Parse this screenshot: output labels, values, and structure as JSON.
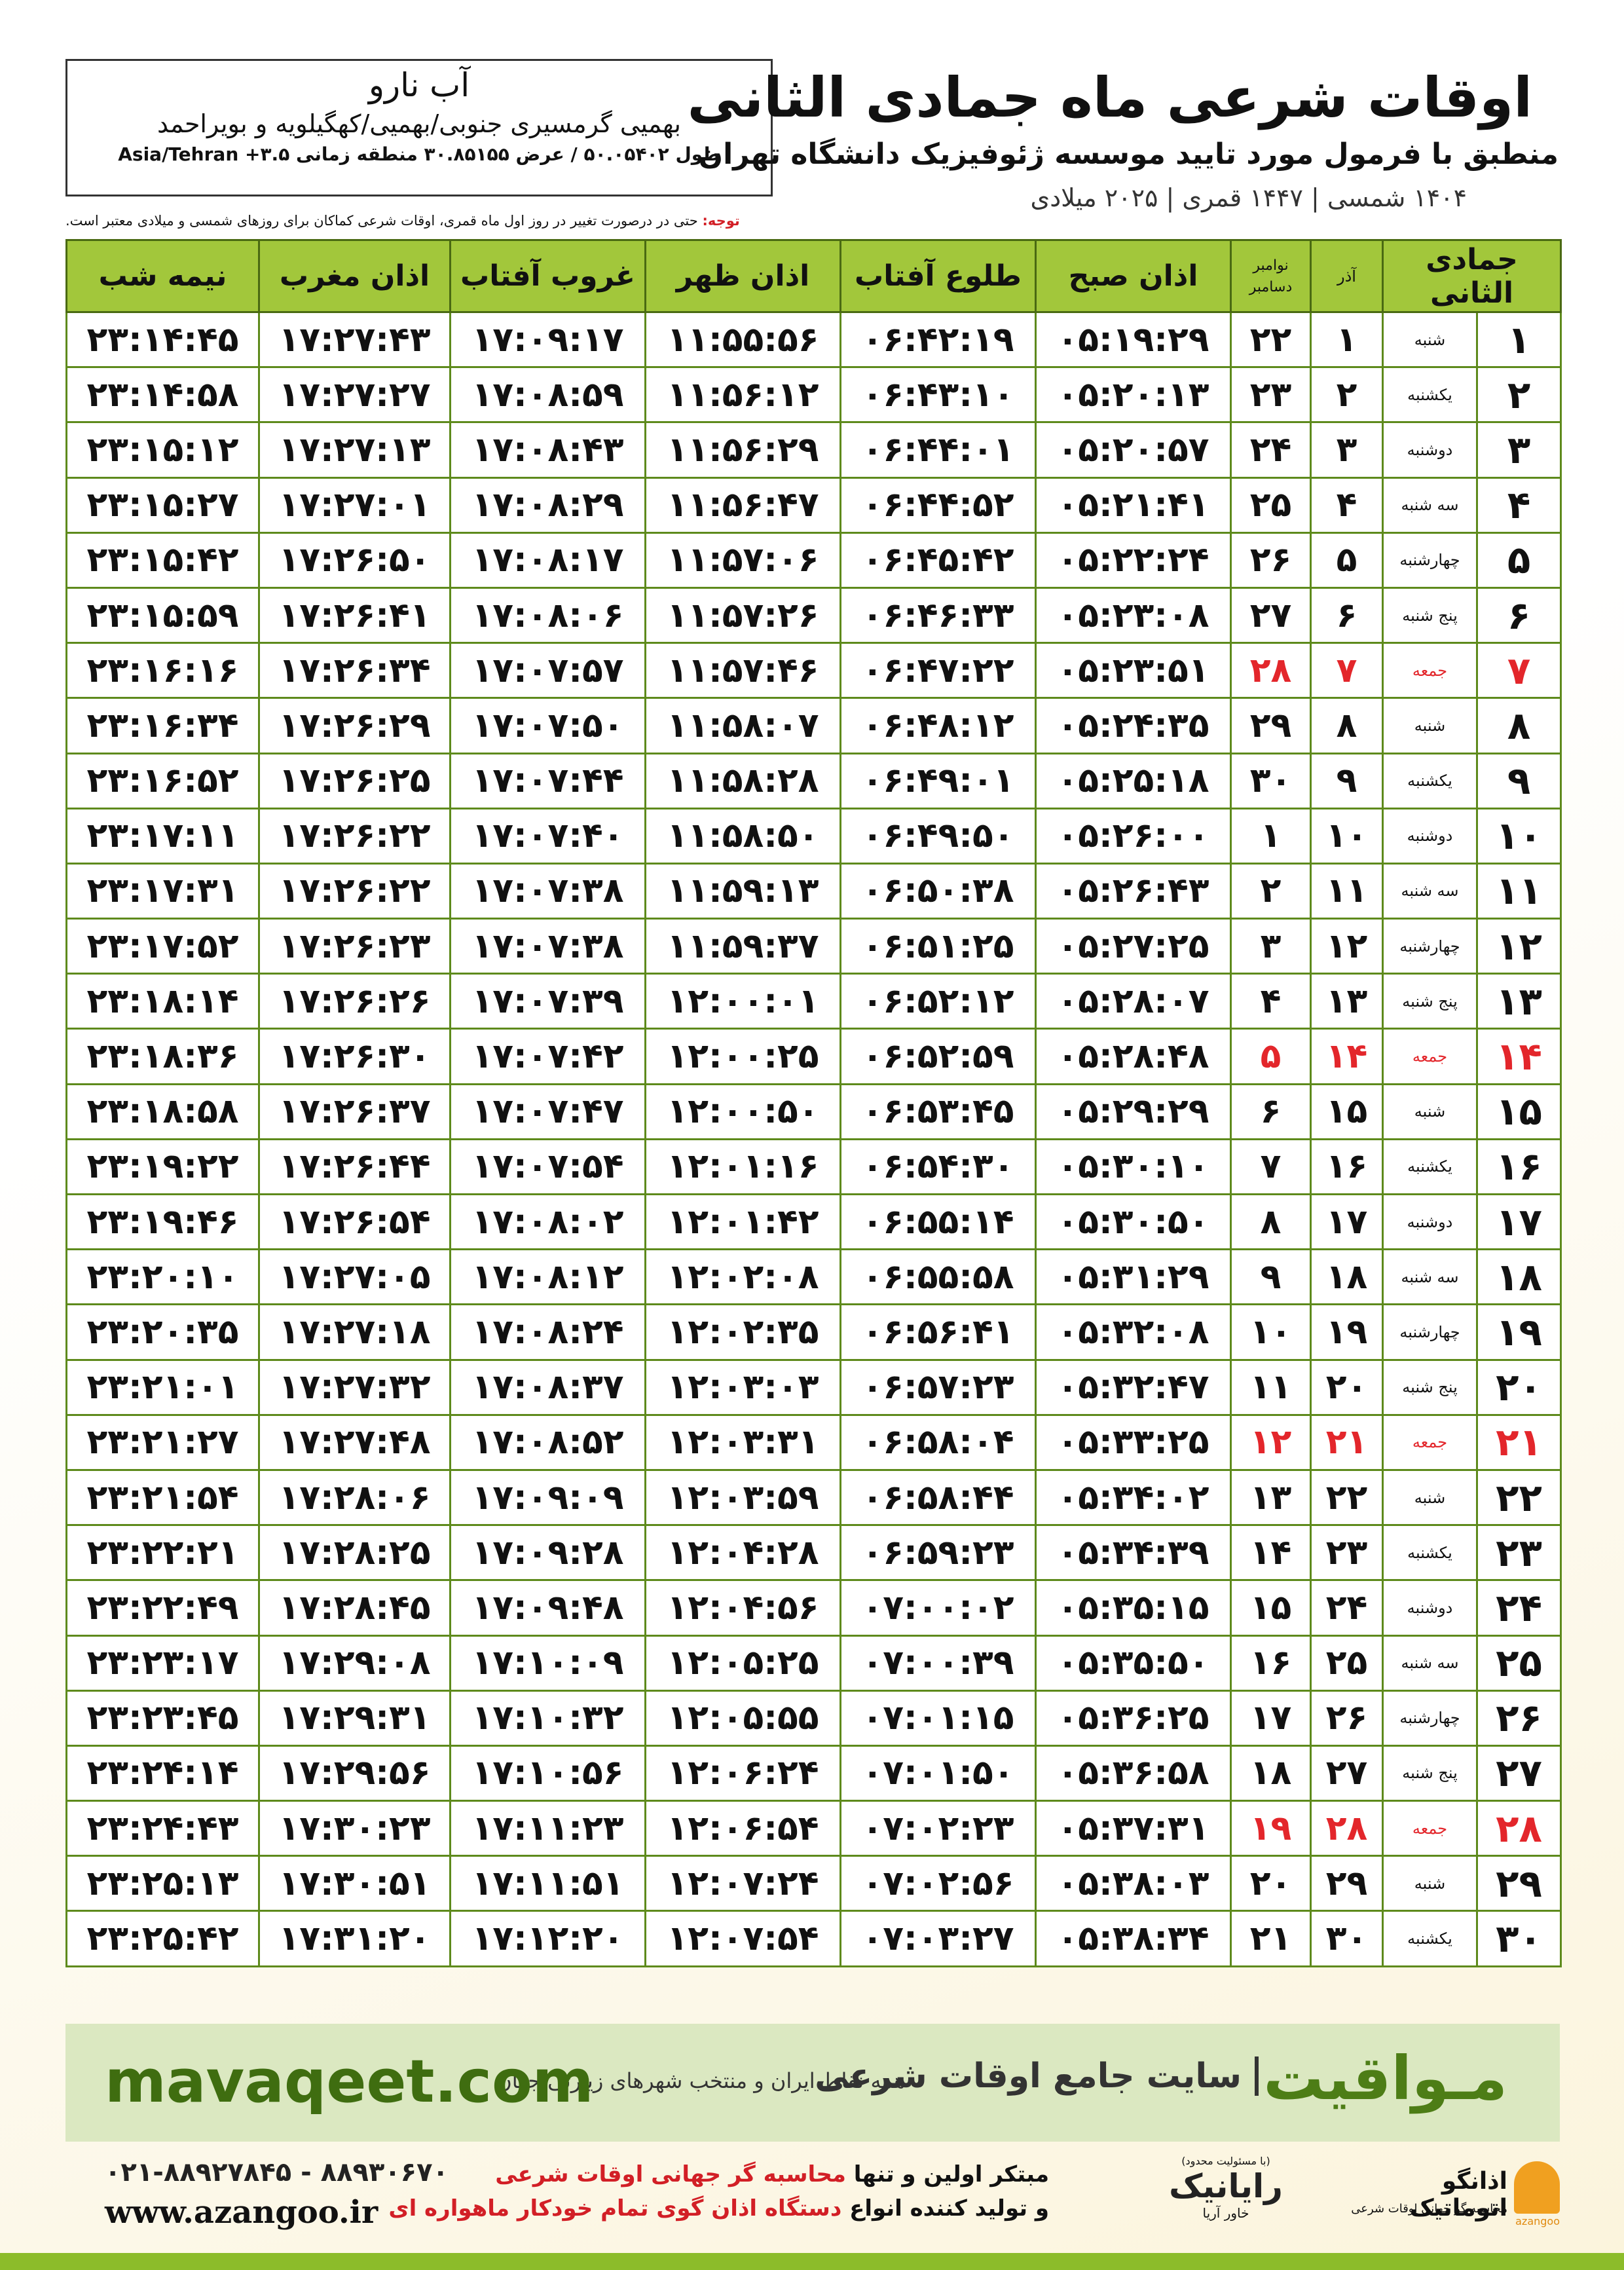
{
  "header": {
    "title": "اوقات شرعی ماه جمادی الثانی",
    "subtitle": "منطبق با فرمول مورد تایید موسسه ژئوفیزیک دانشگاه تهران",
    "dates": "۱۴۰۴ شمسی | ۱۴۴۷ قمری | ۲۰۲۵ میلادی"
  },
  "location": {
    "name": "آب نارو",
    "region": "بهمیی گرمسیری جنوبی/بهمیی/کهگیلویه و بویراحمد",
    "coords": "طول ۵۰.۰۵۴۰۲ / عرض ۳۰.۸۵۱۵۵ منطقه زمانی ۳.۵+ Asia/Tehran"
  },
  "note": {
    "label": "توجه:",
    "text": "حتی در درصورت تغییر در روز اول ماه قمری، اوقات شرعی کماکان برای روزهای شمسی و میلادی معتبر است."
  },
  "table": {
    "columns": [
      "جمادی الثانی",
      "آذر",
      [
        "نوامبر",
        "دسامبر"
      ],
      "اذان صبح",
      "طلوع آفتاب",
      "اذان ظهر",
      "غروب آفتاب",
      "اذان مغرب",
      "نیمه شب"
    ],
    "rows": [
      [
        "۱",
        "شنبه",
        "۱",
        "۲۲",
        "۰۵:۱۹:۲۹",
        "۰۶:۴۲:۱۹",
        "۱۱:۵۵:۵۶",
        "۱۷:۰۹:۱۷",
        "۱۷:۲۷:۴۳",
        "۲۳:۱۴:۴۵"
      ],
      [
        "۲",
        "یکشنبه",
        "۲",
        "۲۳",
        "۰۵:۲۰:۱۳",
        "۰۶:۴۳:۱۰",
        "۱۱:۵۶:۱۲",
        "۱۷:۰۸:۵۹",
        "۱۷:۲۷:۲۷",
        "۲۳:۱۴:۵۸"
      ],
      [
        "۳",
        "دوشنبه",
        "۳",
        "۲۴",
        "۰۵:۲۰:۵۷",
        "۰۶:۴۴:۰۱",
        "۱۱:۵۶:۲۹",
        "۱۷:۰۸:۴۳",
        "۱۷:۲۷:۱۳",
        "۲۳:۱۵:۱۲"
      ],
      [
        "۴",
        "سه شنبه",
        "۴",
        "۲۵",
        "۰۵:۲۱:۴۱",
        "۰۶:۴۴:۵۲",
        "۱۱:۵۶:۴۷",
        "۱۷:۰۸:۲۹",
        "۱۷:۲۷:۰۱",
        "۲۳:۱۵:۲۷"
      ],
      [
        "۵",
        "چهارشنبه",
        "۵",
        "۲۶",
        "۰۵:۲۲:۲۴",
        "۰۶:۴۵:۴۲",
        "۱۱:۵۷:۰۶",
        "۱۷:۰۸:۱۷",
        "۱۷:۲۶:۵۰",
        "۲۳:۱۵:۴۲"
      ],
      [
        "۶",
        "پنج شنبه",
        "۶",
        "۲۷",
        "۰۵:۲۳:۰۸",
        "۰۶:۴۶:۳۳",
        "۱۱:۵۷:۲۶",
        "۱۷:۰۸:۰۶",
        "۱۷:۲۶:۴۱",
        "۲۳:۱۵:۵۹"
      ],
      {
        "cells": [
          "۷",
          "جمعه",
          "۷",
          "۲۸",
          "۰۵:۲۳:۵۱",
          "۰۶:۴۷:۲۲",
          "۱۱:۵۷:۴۶",
          "۱۷:۰۷:۵۷",
          "۱۷:۲۶:۳۴",
          "۲۳:۱۶:۱۶"
        ],
        "color": "#e3262b"
      },
      [
        "۸",
        "شنبه",
        "۸",
        "۲۹",
        "۰۵:۲۴:۳۵",
        "۰۶:۴۸:۱۲",
        "۱۱:۵۸:۰۷",
        "۱۷:۰۷:۵۰",
        "۱۷:۲۶:۲۹",
        "۲۳:۱۶:۳۴"
      ],
      [
        "۹",
        "یکشنبه",
        "۹",
        "۳۰",
        "۰۵:۲۵:۱۸",
        "۰۶:۴۹:۰۱",
        "۱۱:۵۸:۲۸",
        "۱۷:۰۷:۴۴",
        "۱۷:۲۶:۲۵",
        "۲۳:۱۶:۵۲"
      ],
      [
        "۱۰",
        "دوشنبه",
        "۱۰",
        "۱",
        "۰۵:۲۶:۰۰",
        "۰۶:۴۹:۵۰",
        "۱۱:۵۸:۵۰",
        "۱۷:۰۷:۴۰",
        "۱۷:۲۶:۲۲",
        "۲۳:۱۷:۱۱"
      ],
      [
        "۱۱",
        "سه شنبه",
        "۱۱",
        "۲",
        "۰۵:۲۶:۴۳",
        "۰۶:۵۰:۳۸",
        "۱۱:۵۹:۱۳",
        "۱۷:۰۷:۳۸",
        "۱۷:۲۶:۲۲",
        "۲۳:۱۷:۳۱"
      ],
      [
        "۱۲",
        "چهارشنبه",
        "۱۲",
        "۳",
        "۰۵:۲۷:۲۵",
        "۰۶:۵۱:۲۵",
        "۱۱:۵۹:۳۷",
        "۱۷:۰۷:۳۸",
        "۱۷:۲۶:۲۳",
        "۲۳:۱۷:۵۲"
      ],
      [
        "۱۳",
        "پنج شنبه",
        "۱۳",
        "۴",
        "۰۵:۲۸:۰۷",
        "۰۶:۵۲:۱۲",
        "۱۲:۰۰:۰۱",
        "۱۷:۰۷:۳۹",
        "۱۷:۲۶:۲۶",
        "۲۳:۱۸:۱۴"
      ],
      {
        "cells": [
          "۱۴",
          "جمعه",
          "۱۴",
          "۵",
          "۰۵:۲۸:۴۸",
          "۰۶:۵۲:۵۹",
          "۱۲:۰۰:۲۵",
          "۱۷:۰۷:۴۲",
          "۱۷:۲۶:۳۰",
          "۲۳:۱۸:۳۶"
        ],
        "color": "#e3262b"
      },
      [
        "۱۵",
        "شنبه",
        "۱۵",
        "۶",
        "۰۵:۲۹:۲۹",
        "۰۶:۵۳:۴۵",
        "۱۲:۰۰:۵۰",
        "۱۷:۰۷:۴۷",
        "۱۷:۲۶:۳۷",
        "۲۳:۱۸:۵۸"
      ],
      [
        "۱۶",
        "یکشنبه",
        "۱۶",
        "۷",
        "۰۵:۳۰:۱۰",
        "۰۶:۵۴:۳۰",
        "۱۲:۰۱:۱۶",
        "۱۷:۰۷:۵۴",
        "۱۷:۲۶:۴۴",
        "۲۳:۱۹:۲۲"
      ],
      [
        "۱۷",
        "دوشنبه",
        "۱۷",
        "۸",
        "۰۵:۳۰:۵۰",
        "۰۶:۵۵:۱۴",
        "۱۲:۰۱:۴۲",
        "۱۷:۰۸:۰۲",
        "۱۷:۲۶:۵۴",
        "۲۳:۱۹:۴۶"
      ],
      [
        "۱۸",
        "سه شنبه",
        "۱۸",
        "۹",
        "۰۵:۳۱:۲۹",
        "۰۶:۵۵:۵۸",
        "۱۲:۰۲:۰۸",
        "۱۷:۰۸:۱۲",
        "۱۷:۲۷:۰۵",
        "۲۳:۲۰:۱۰"
      ],
      [
        "۱۹",
        "چهارشنبه",
        "۱۹",
        "۱۰",
        "۰۵:۳۲:۰۸",
        "۰۶:۵۶:۴۱",
        "۱۲:۰۲:۳۵",
        "۱۷:۰۸:۲۴",
        "۱۷:۲۷:۱۸",
        "۲۳:۲۰:۳۵"
      ],
      [
        "۲۰",
        "پنج شنبه",
        "۲۰",
        "۱۱",
        "۰۵:۳۲:۴۷",
        "۰۶:۵۷:۲۳",
        "۱۲:۰۳:۰۳",
        "۱۷:۰۸:۳۷",
        "۱۷:۲۷:۳۲",
        "۲۳:۲۱:۰۱"
      ],
      {
        "cells": [
          "۲۱",
          "جمعه",
          "۲۱",
          "۱۲",
          "۰۵:۳۳:۲۵",
          "۰۶:۵۸:۰۴",
          "۱۲:۰۳:۳۱",
          "۱۷:۰۸:۵۲",
          "۱۷:۲۷:۴۸",
          "۲۳:۲۱:۲۷"
        ],
        "color": "#e3262b"
      },
      [
        "۲۲",
        "شنبه",
        "۲۲",
        "۱۳",
        "۰۵:۳۴:۰۲",
        "۰۶:۵۸:۴۴",
        "۱۲:۰۳:۵۹",
        "۱۷:۰۹:۰۹",
        "۱۷:۲۸:۰۶",
        "۲۳:۲۱:۵۴"
      ],
      [
        "۲۳",
        "یکشنبه",
        "۲۳",
        "۱۴",
        "۰۵:۳۴:۳۹",
        "۰۶:۵۹:۲۳",
        "۱۲:۰۴:۲۸",
        "۱۷:۰۹:۲۸",
        "۱۷:۲۸:۲۵",
        "۲۳:۲۲:۲۱"
      ],
      [
        "۲۴",
        "دوشنبه",
        "۲۴",
        "۱۵",
        "۰۵:۳۵:۱۵",
        "۰۷:۰۰:۰۲",
        "۱۲:۰۴:۵۶",
        "۱۷:۰۹:۴۸",
        "۱۷:۲۸:۴۵",
        "۲۳:۲۲:۴۹"
      ],
      [
        "۲۵",
        "سه شنبه",
        "۲۵",
        "۱۶",
        "۰۵:۳۵:۵۰",
        "۰۷:۰۰:۳۹",
        "۱۲:۰۵:۲۵",
        "۱۷:۱۰:۰۹",
        "۱۷:۲۹:۰۸",
        "۲۳:۲۳:۱۷"
      ],
      [
        "۲۶",
        "چهارشنبه",
        "۲۶",
        "۱۷",
        "۰۵:۳۶:۲۵",
        "۰۷:۰۱:۱۵",
        "۱۲:۰۵:۵۵",
        "۱۷:۱۰:۳۲",
        "۱۷:۲۹:۳۱",
        "۲۳:۲۳:۴۵"
      ],
      [
        "۲۷",
        "پنج شنبه",
        "۲۷",
        "۱۸",
        "۰۵:۳۶:۵۸",
        "۰۷:۰۱:۵۰",
        "۱۲:۰۶:۲۴",
        "۱۷:۱۰:۵۶",
        "۱۷:۲۹:۵۶",
        "۲۳:۲۴:۱۴"
      ],
      {
        "cells": [
          "۲۸",
          "جمعه",
          "۲۸",
          "۱۹",
          "۰۵:۳۷:۳۱",
          "۰۷:۰۲:۲۳",
          "۱۲:۰۶:۵۴",
          "۱۷:۱۱:۲۳",
          "۱۷:۳۰:۲۳",
          "۲۳:۲۴:۴۳"
        ],
        "color": "#e3262b"
      },
      [
        "۲۹",
        "شنبه",
        "۲۹",
        "۲۰",
        "۰۵:۳۸:۰۳",
        "۰۷:۰۲:۵۶",
        "۱۲:۰۷:۲۴",
        "۱۷:۱۱:۵۱",
        "۱۷:۳۰:۵۱",
        "۲۳:۲۵:۱۳"
      ],
      [
        "۳۰",
        "یکشنبه",
        "۳۰",
        "۲۱",
        "۰۵:۳۸:۳۴",
        "۰۷:۰۳:۲۷",
        "۱۲:۰۷:۵۴",
        "۱۷:۱۲:۲۰",
        "۱۷:۳۱:۲۰",
        "۲۳:۲۵:۴۲"
      ]
    ]
  },
  "banner": {
    "brand": "مـواقیت",
    "slogan": "سایت جامع اوقات شرعی",
    "coverage": "همه نقاط ایران و منتخب شهرهای زیارتی جهان",
    "url": "mavaqeet.com"
  },
  "footer": {
    "phones": "۰۲۱-۸۸۹۲۷۸۴۵ - ۸۸۹۳۰۶۷۰",
    "site": "www.azangoo.ir",
    "line1_start": "مبتکر اولین و تنها",
    "line1_highlight": "محاسبه گر جهانی اوقات شرعی",
    "line2_start": "و تولید کننده انواع",
    "line2_highlight": "دستگاه اذان گوی تمام خودکار ماهواره ای",
    "logo1_note": "(با مسئولیت محدود)",
    "logo1": "رایانیک",
    "logo1_sub": "خاور آریا",
    "logo2": "اذانگو اتوماتیک",
    "logo2_sub": "محاسبه گر جهانی اوقات شرعی",
    "logo2_en": "azangoo"
  }
}
